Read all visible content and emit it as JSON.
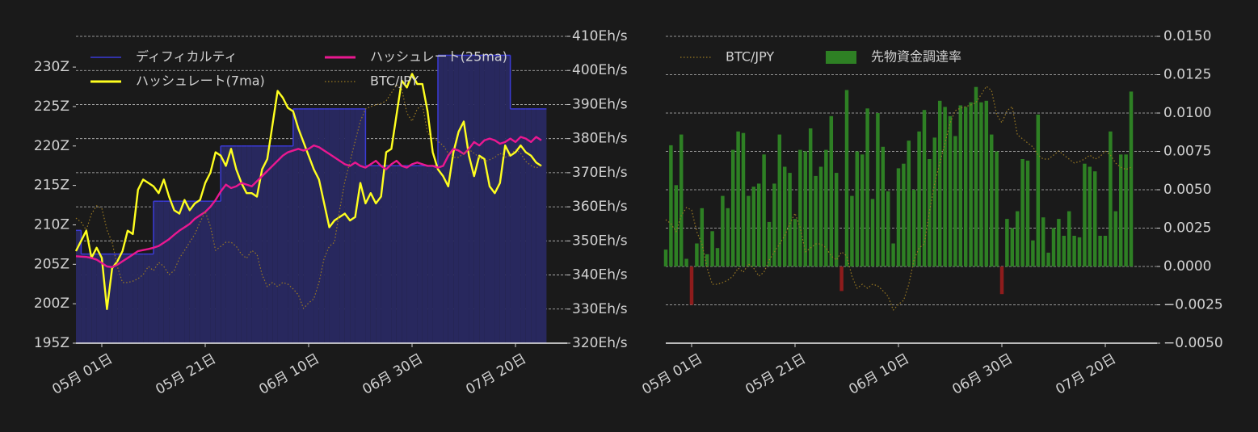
{
  "chart_data": [
    {
      "type": "line",
      "x": [
        "04-26",
        "04-27",
        "04-28",
        "04-29",
        "04-30",
        "05-01",
        "05-02",
        "05-03",
        "05-04",
        "05-05",
        "05-06",
        "05-07",
        "05-08",
        "05-09",
        "05-10",
        "05-11",
        "05-12",
        "05-13",
        "05-14",
        "05-15",
        "05-16",
        "05-17",
        "05-18",
        "05-19",
        "05-20",
        "05-21",
        "05-22",
        "05-23",
        "05-24",
        "05-25",
        "05-26",
        "05-27",
        "05-28",
        "05-29",
        "05-30",
        "05-31",
        "06-01",
        "06-02",
        "06-03",
        "06-04",
        "06-05",
        "06-06",
        "06-07",
        "06-08",
        "06-09",
        "06-10",
        "06-11",
        "06-12",
        "06-13",
        "06-14",
        "06-15",
        "06-16",
        "06-17",
        "06-18",
        "06-19",
        "06-20",
        "06-21",
        "06-22",
        "06-23",
        "06-24",
        "06-25",
        "06-26",
        "06-27",
        "06-28",
        "06-29",
        "06-30",
        "07-01",
        "07-02",
        "07-03",
        "07-04",
        "07-05",
        "07-06",
        "07-07",
        "07-08",
        "07-09",
        "07-10",
        "07-11",
        "07-12",
        "07-13",
        "07-14",
        "07-15",
        "07-16",
        "07-17",
        "07-18",
        "07-19",
        "07-20",
        "07-21",
        "07-22",
        "07-23",
        "07-24",
        "07-25"
      ],
      "xlim": [
        "04-26",
        "07-30"
      ],
      "xticks": [
        {
          "value": "05-01",
          "label": "05月 01日"
        },
        {
          "value": "05-21",
          "label": "05月 21日"
        },
        {
          "value": "06-10",
          "label": "06月 10日"
        },
        {
          "value": "06-30",
          "label": "06月 30日"
        },
        {
          "value": "07-20",
          "label": "07月 20日"
        }
      ],
      "ylim": [
        195,
        233.9
      ],
      "yticks": [
        {
          "value": 195,
          "label": "195Z"
        },
        {
          "value": 200,
          "label": "200Z"
        },
        {
          "value": 205,
          "label": "205Z"
        },
        {
          "value": 210,
          "label": "210Z"
        },
        {
          "value": 215,
          "label": "215Z"
        },
        {
          "value": 220,
          "label": "220Z"
        },
        {
          "value": 225,
          "label": "225Z"
        },
        {
          "value": 230,
          "label": "230Z"
        }
      ],
      "y2lim": [
        320,
        410
      ],
      "y2ticks": [
        {
          "value": 320,
          "label": "320Eh/s"
        },
        {
          "value": 330,
          "label": "330Eh/s"
        },
        {
          "value": 340,
          "label": "340Eh/s"
        },
        {
          "value": 350,
          "label": "350Eh/s"
        },
        {
          "value": 360,
          "label": "360Eh/s"
        },
        {
          "value": 370,
          "label": "370Eh/s"
        },
        {
          "value": 380,
          "label": "380Eh/s"
        },
        {
          "value": 390,
          "label": "390Eh/s"
        },
        {
          "value": 400,
          "label": "400Eh/s"
        },
        {
          "value": 410,
          "label": "410Eh/s"
        }
      ],
      "grid": "y2",
      "yaxis_side": "left",
      "legend": "upper left",
      "legend_columns": 2,
      "series": [
        {
          "name": "ディフィカルティ",
          "type": "area-step",
          "color": "#3b3bd6",
          "fill": "#28285e",
          "values": [
            209.3,
            206.3,
            206.3,
            206.3,
            206.3,
            206.3,
            206.3,
            206.3,
            206.3,
            206.3,
            206.3,
            206.3,
            206.3,
            206.3,
            206.3,
            213.0,
            213.0,
            213.0,
            213.0,
            213.0,
            213.0,
            213.0,
            213.0,
            213.0,
            213.0,
            213.0,
            213.0,
            213.0,
            220.0,
            220.0,
            220.0,
            220.0,
            220.0,
            220.0,
            220.0,
            220.0,
            220.0,
            220.0,
            220.0,
            220.0,
            220.0,
            220.0,
            224.7,
            224.7,
            224.7,
            224.7,
            224.7,
            224.7,
            224.7,
            224.7,
            224.7,
            224.7,
            224.7,
            224.7,
            224.7,
            224.7,
            217.5,
            217.5,
            217.5,
            217.5,
            217.5,
            217.5,
            217.5,
            217.5,
            217.5,
            217.5,
            217.5,
            217.5,
            217.5,
            217.5,
            231.5,
            231.5,
            231.5,
            231.5,
            231.5,
            231.5,
            231.5,
            231.5,
            231.5,
            231.5,
            231.5,
            231.5,
            231.5,
            231.5,
            224.7,
            224.7,
            224.7,
            224.7,
            224.7,
            224.7,
            224.7
          ]
        },
        {
          "name": "ハッシュレート(7ma)",
          "type": "line",
          "axis": "y2",
          "color": "#ffff1f",
          "linestyle": "solid",
          "values": [
            347,
            350,
            353,
            345,
            348,
            345,
            330,
            342,
            344,
            347,
            353,
            352,
            365,
            368,
            367,
            366,
            364,
            368,
            363,
            359,
            358,
            362,
            359,
            361,
            362,
            367,
            370,
            376,
            375,
            372,
            377,
            371,
            367,
            364,
            364,
            363,
            371,
            374,
            384,
            394,
            392,
            389,
            388,
            383,
            379,
            375,
            371,
            368,
            361,
            354,
            356,
            357,
            358,
            356,
            357,
            367,
            361,
            364,
            361,
            363,
            376,
            377,
            387,
            397,
            395,
            399,
            396,
            396,
            388,
            376,
            371,
            369,
            366,
            376,
            382,
            385,
            375,
            369,
            375,
            374,
            366,
            364,
            367,
            378,
            375,
            376,
            378,
            376,
            375,
            373,
            372
          ]
        },
        {
          "name": "ハッシュレート(25ma)",
          "type": "line",
          "axis": "y2",
          "color": "#ea1890",
          "linestyle": "solid",
          "values": [
            345.5,
            345.4,
            345.3,
            345.0,
            344.5,
            343.5,
            342.5,
            342.3,
            343.0,
            344.0,
            345.0,
            346.0,
            347.0,
            347.3,
            347.6,
            348.0,
            348.5,
            349.5,
            350.5,
            351.8,
            353.0,
            354.0,
            355.0,
            356.5,
            357.5,
            358.5,
            360.0,
            362.0,
            364.5,
            366.5,
            365.5,
            366.0,
            367.0,
            366.5,
            366.0,
            367.5,
            369.0,
            370.5,
            372.0,
            373.5,
            375.0,
            376.0,
            376.5,
            377.0,
            376.5,
            377.0,
            378.0,
            377.5,
            376.5,
            375.5,
            374.5,
            373.5,
            372.5,
            372.0,
            373.0,
            372.0,
            371.5,
            372.5,
            373.5,
            372.0,
            371.0,
            372.5,
            373.5,
            372.0,
            371.5,
            372.5,
            373.0,
            372.5,
            372.0,
            372.0,
            371.5,
            372.0,
            375.0,
            377.0,
            376.5,
            375.5,
            377.0,
            379.0,
            378.0,
            379.5,
            380.0,
            379.5,
            378.5,
            379.0,
            380.0,
            379.0,
            380.5,
            380.0,
            379.0,
            380.5,
            379.5
          ]
        },
        {
          "name": "BTC/JPY",
          "type": "line",
          "axis": "y2",
          "color": "#9c7a22",
          "linestyle": "dotted",
          "values": [
            356.7,
            355.5,
            353.2,
            357.9,
            360.3,
            359.6,
            353.2,
            349.6,
            342.5,
            337.8,
            337.8,
            338.2,
            338.9,
            340.1,
            342.5,
            341.3,
            343.7,
            342.5,
            340.1,
            341.3,
            344.9,
            347.2,
            349.6,
            352.0,
            355.5,
            358.6,
            354.3,
            347.2,
            348.4,
            349.6,
            349.6,
            348.4,
            346.1,
            344.9,
            347.2,
            346.1,
            340.1,
            336.6,
            337.8,
            336.6,
            337.8,
            337.3,
            335.9,
            334.2,
            330.2,
            331.8,
            333.0,
            337.8,
            344.9,
            348.4,
            349.6,
            359.1,
            367.4,
            373.3,
            379.2,
            385.1,
            388.7,
            389.4,
            389.9,
            390.3,
            391.1,
            393.4,
            395.8,
            394.6,
            387.5,
            385.1,
            388.7,
            389.9,
            381.6,
            380.4,
            379.2,
            378.0,
            375.7,
            374.5,
            374.5,
            375.7,
            376.8,
            375.7,
            374.5,
            373.3,
            373.8,
            374.5,
            375.7,
            374.5,
            375.2,
            376.8,
            375.7,
            373.3,
            372.1,
            371.4,
            372.1
          ]
        }
      ]
    },
    {
      "type": "bar",
      "x": [
        "04-26",
        "04-27",
        "04-28",
        "04-29",
        "04-30",
        "05-01",
        "05-02",
        "05-03",
        "05-04",
        "05-05",
        "05-06",
        "05-07",
        "05-08",
        "05-09",
        "05-10",
        "05-11",
        "05-12",
        "05-13",
        "05-14",
        "05-15",
        "05-16",
        "05-17",
        "05-18",
        "05-19",
        "05-20",
        "05-21",
        "05-22",
        "05-23",
        "05-24",
        "05-25",
        "05-26",
        "05-27",
        "05-28",
        "05-29",
        "05-30",
        "05-31",
        "06-01",
        "06-02",
        "06-03",
        "06-04",
        "06-05",
        "06-06",
        "06-07",
        "06-08",
        "06-09",
        "06-10",
        "06-11",
        "06-12",
        "06-13",
        "06-14",
        "06-15",
        "06-16",
        "06-17",
        "06-18",
        "06-19",
        "06-20",
        "06-21",
        "06-22",
        "06-23",
        "06-24",
        "06-25",
        "06-26",
        "06-27",
        "06-28",
        "06-29",
        "06-30",
        "07-01",
        "07-02",
        "07-03",
        "07-04",
        "07-05",
        "07-06",
        "07-07",
        "07-08",
        "07-09",
        "07-10",
        "07-11",
        "07-12",
        "07-13",
        "07-14",
        "07-15",
        "07-16",
        "07-17",
        "07-18",
        "07-19",
        "07-20",
        "07-21",
        "07-22",
        "07-23",
        "07-24",
        "07-25"
      ],
      "xlim": [
        "04-26",
        "07-30"
      ],
      "xticks": [
        {
          "value": "05-01",
          "label": "05月 01日"
        },
        {
          "value": "05-21",
          "label": "05月 21日"
        },
        {
          "value": "06-10",
          "label": "06月 10日"
        },
        {
          "value": "06-30",
          "label": "06月 30日"
        },
        {
          "value": "07-20",
          "label": "07月 20日"
        }
      ],
      "ylim": [
        -0.005,
        0.015
      ],
      "yticks": [
        {
          "value": -0.005,
          "label": "−0.0050"
        },
        {
          "value": -0.0025,
          "label": "−0.0025"
        },
        {
          "value": 0,
          "label": "0.0000"
        },
        {
          "value": 0.0025,
          "label": "0.0025"
        },
        {
          "value": 0.005,
          "label": "0.0050"
        },
        {
          "value": 0.0075,
          "label": "0.0075"
        },
        {
          "value": 0.01,
          "label": "0.0100"
        },
        {
          "value": 0.0125,
          "label": "0.0125"
        },
        {
          "value": 0.015,
          "label": "0.0150"
        }
      ],
      "grid": "y",
      "yaxis_side": "right",
      "legend": "upper left",
      "legend_columns": 2,
      "series": [
        {
          "name": "BTC/JPY",
          "type": "line",
          "axis": "y",
          "color": "#9c7a22",
          "linestyle": "dotted",
          "values": [
            0.00305,
            0.00279,
            0.00226,
            0.00332,
            0.00384,
            0.00368,
            0.00226,
            0.00147,
            -0.00011,
            -0.00116,
            -0.00116,
            -0.00105,
            -0.00089,
            -0.00063,
            -0.00011,
            -0.00037,
            0.00016,
            -0.00011,
            -0.00063,
            -0.00037,
            0.00042,
            0.00095,
            0.00147,
            0.002,
            0.00279,
            0.00347,
            0.00253,
            0.00095,
            0.00121,
            0.00147,
            0.00147,
            0.00121,
            0.00068,
            0.00042,
            0.00095,
            0.00068,
            -0.00063,
            -0.00142,
            -0.00116,
            -0.00142,
            -0.00116,
            -0.00126,
            -0.00158,
            -0.00195,
            -0.00284,
            -0.00247,
            -0.00221,
            -0.00116,
            0.00042,
            0.00121,
            0.00147,
            0.00358,
            0.00542,
            0.00674,
            0.00805,
            0.00937,
            0.01016,
            0.01032,
            0.01042,
            0.01053,
            0.01068,
            0.01121,
            0.01174,
            0.01147,
            0.00989,
            0.00937,
            0.01016,
            0.01042,
            0.00858,
            0.00832,
            0.00805,
            0.00779,
            0.00726,
            0.007,
            0.007,
            0.00726,
            0.00753,
            0.00726,
            0.007,
            0.00674,
            0.00684,
            0.007,
            0.00726,
            0.007,
            0.00716,
            0.00753,
            0.00726,
            0.00674,
            0.00647,
            0.00632,
            0.00647
          ]
        },
        {
          "name": "先物資金調達率",
          "type": "bar",
          "color": "#2e8024",
          "negative_color": "#8e1c1c",
          "values": [
            0.0011,
            0.0079,
            0.0053,
            0.0086,
            0.0005,
            -0.0025,
            0.0015,
            0.0038,
            0.0008,
            0.0023,
            0.0012,
            0.0046,
            0.0038,
            0.0076,
            0.0088,
            0.0087,
            0.0046,
            0.0052,
            0.0054,
            0.0073,
            0.0029,
            0.0054,
            0.0086,
            0.0065,
            0.0061,
            0.0031,
            0.0076,
            0.0075,
            0.009,
            0.0059,
            0.0065,
            0.0076,
            0.0098,
            0.0061,
            -0.0016,
            0.0115,
            0.0046,
            0.0075,
            0.0073,
            0.0103,
            0.0044,
            0.01,
            0.0078,
            0.0049,
            0.0015,
            0.0064,
            0.0067,
            0.0082,
            0.005,
            0.0088,
            0.0102,
            0.007,
            0.0084,
            0.0108,
            0.0104,
            0.0098,
            0.0085,
            0.0105,
            0.0104,
            0.0107,
            0.0117,
            0.0107,
            0.0108,
            0.0086,
            0.0075,
            -0.0018,
            0.0031,
            0.0025,
            0.0036,
            0.007,
            0.0069,
            0.0017,
            0.0099,
            0.0032,
            0.0009,
            0.0025,
            0.0031,
            0.002,
            0.0036,
            0.002,
            0.0019,
            0.0067,
            0.0065,
            0.0062,
            0.002,
            0.002,
            0.0088,
            0.0036,
            0.0073,
            0.0073,
            0.0114
          ]
        }
      ]
    }
  ]
}
